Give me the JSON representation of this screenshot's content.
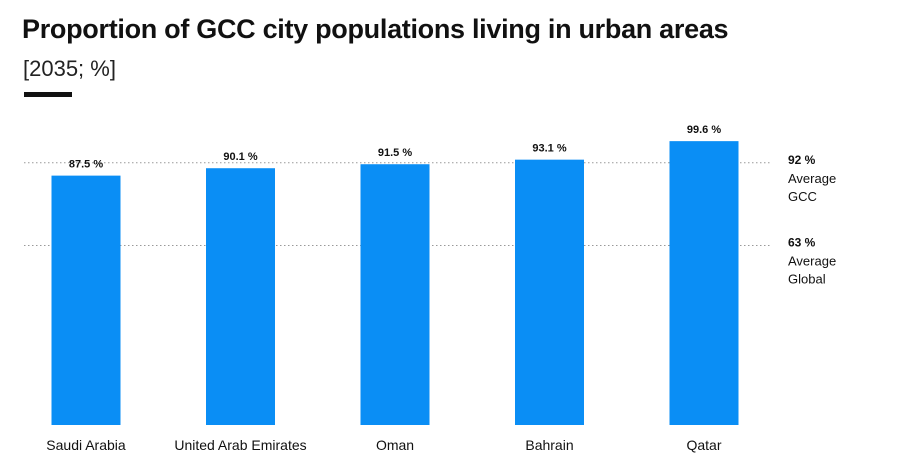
{
  "header": {
    "title": "Proportion of GCC city populations living in urban areas",
    "subtitle": "[2035; %]"
  },
  "chart_data": {
    "type": "bar",
    "categories": [
      "Saudi Arabia",
      "United Arab Emirates",
      "Oman",
      "Bahrain",
      "Qatar"
    ],
    "values": [
      87.5,
      90.1,
      91.5,
      93.1,
      99.6
    ],
    "data_labels": [
      "87.5 %",
      "90.1 %",
      "91.5 %",
      "93.1 %",
      "99.6 %"
    ],
    "title": "Proportion of GCC city populations living in urban areas",
    "subtitle": "[2035; %]",
    "ylim": [
      0,
      100
    ],
    "grid": false,
    "colors": {
      "bar": "#0a8ef5",
      "reference_line": "#999999"
    },
    "reference_lines": [
      {
        "value": 92,
        "value_label": "92 %",
        "label_lines": [
          "Average",
          "GCC"
        ]
      },
      {
        "value": 63,
        "value_label": "63 %",
        "label_lines": [
          "Average",
          "Global"
        ]
      }
    ]
  }
}
